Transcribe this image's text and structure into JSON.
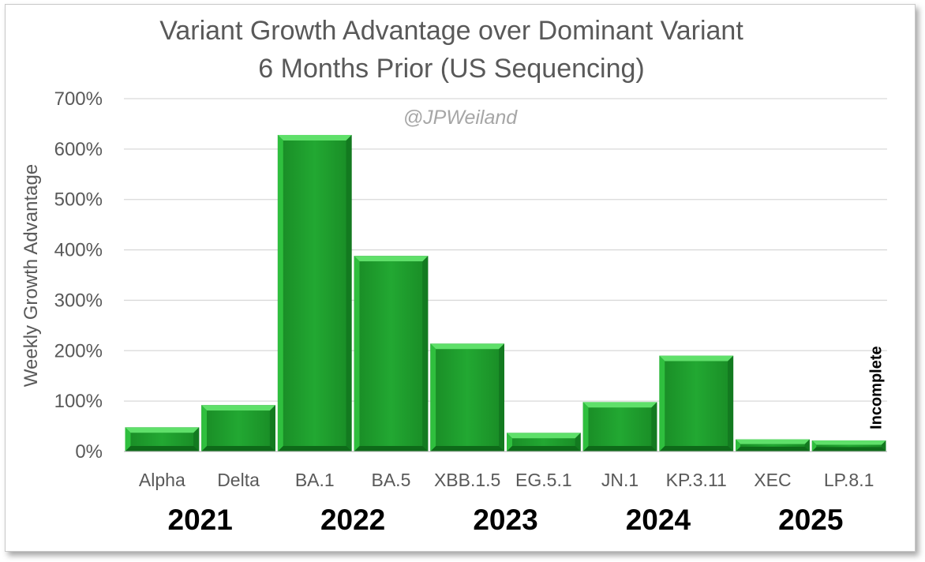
{
  "chart_data": {
    "type": "bar",
    "title": "Variant Growth Advantage over Dominant Variant",
    "subtitle": "6 Months Prior (US Sequencing)",
    "ylabel": "Weekly Growth Advantage",
    "xlabel": "",
    "categories": [
      "Alpha",
      "Delta",
      "BA.1",
      "BA.5",
      "XBB.1.5",
      "EG.5.1",
      "JN.1",
      "KP.3.11",
      "XEC",
      "LP.8.1"
    ],
    "values": [
      48,
      92,
      628,
      388,
      214,
      37,
      98,
      190,
      24,
      22
    ],
    "value_unit": "%",
    "ylim": [
      0,
      700
    ],
    "yticks": [
      "0%",
      "100%",
      "200%",
      "300%",
      "400%",
      "500%",
      "600%",
      "700%"
    ],
    "years": [
      {
        "label": "2021",
        "category_span": [
          0,
          1
        ]
      },
      {
        "label": "2022",
        "category_span": [
          2,
          3
        ]
      },
      {
        "label": "2023",
        "category_span": [
          4,
          5
        ]
      },
      {
        "label": "2024",
        "category_span": [
          6,
          7
        ]
      },
      {
        "label": "2025",
        "category_span": [
          8,
          9
        ]
      }
    ],
    "annotations": [
      {
        "text": "Incomplete",
        "category": "LP.8.1"
      }
    ],
    "watermark": "@JPWeiland",
    "grid": true,
    "colors": {
      "bar_fill": "#21a531",
      "bar_light": "#5fe06a",
      "bar_dark": "#0b6b17",
      "grid": "#d9d9d9",
      "text": "#595959"
    }
  }
}
